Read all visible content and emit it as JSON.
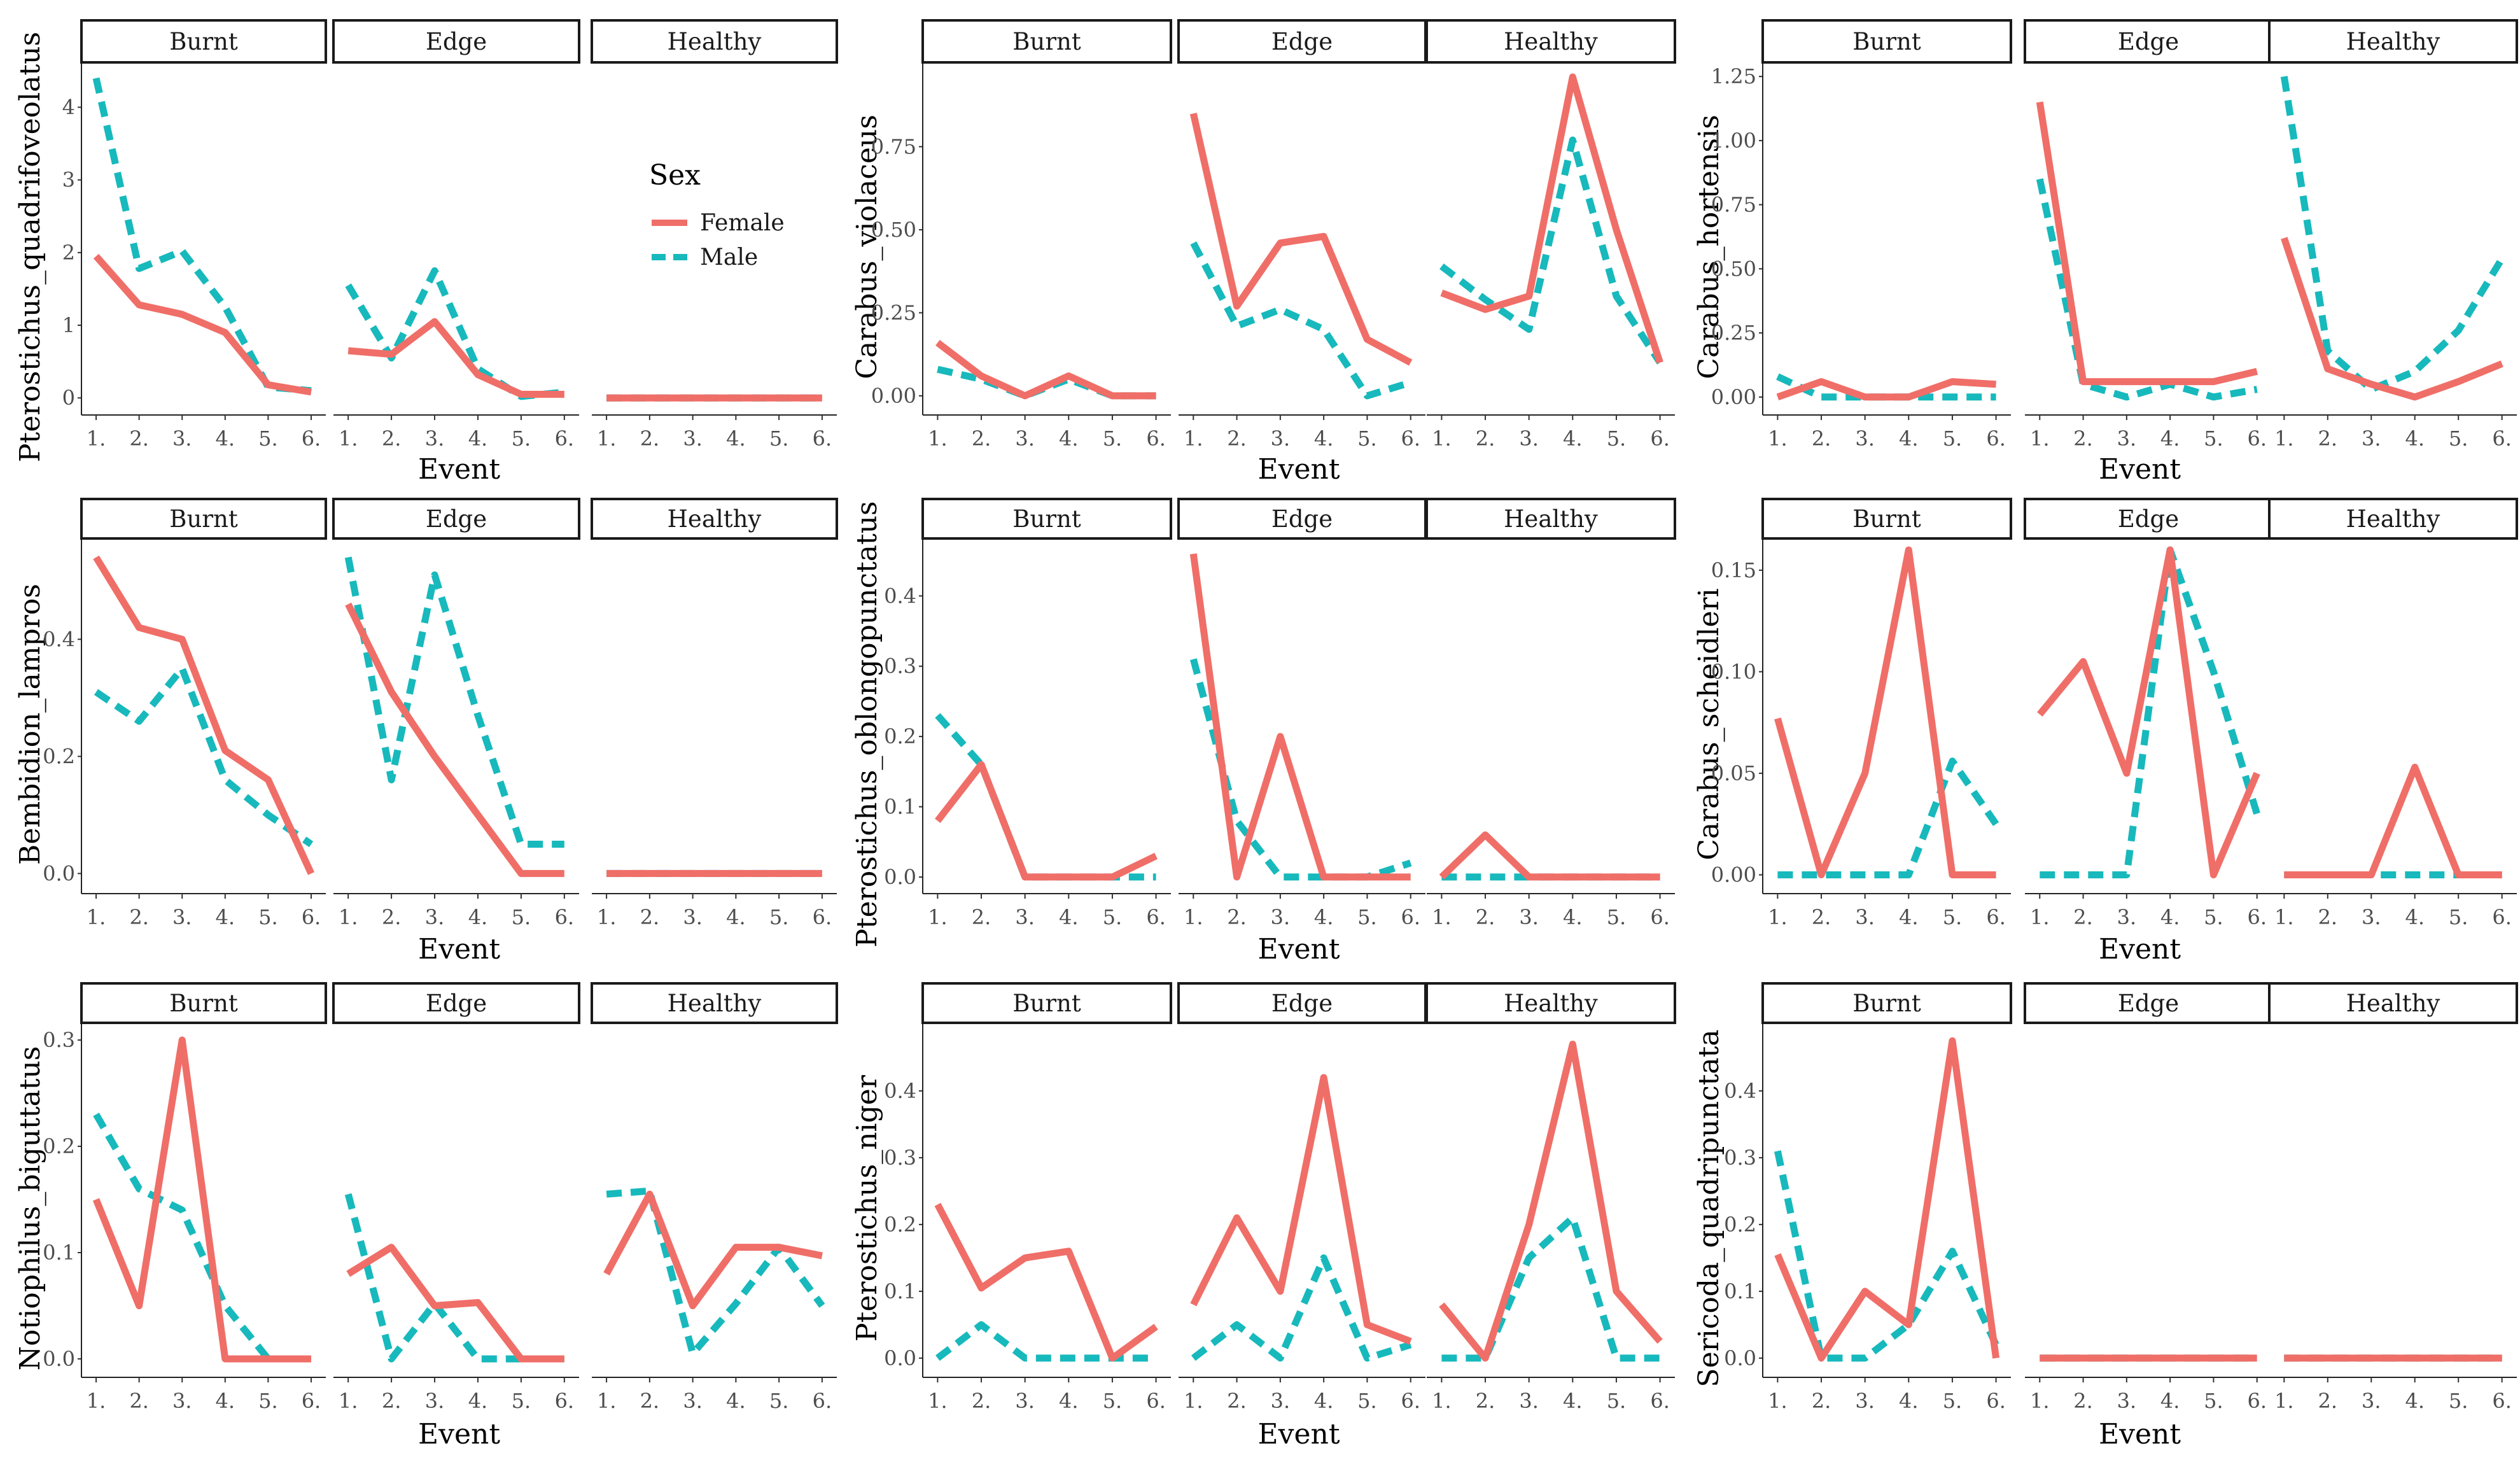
{
  "legend": {
    "title": "Sex",
    "entries": [
      {
        "label": "Female",
        "color": "#F06E68",
        "dash": "solid"
      },
      {
        "label": "Male",
        "color": "#17B9BC",
        "dash": "dashed"
      }
    ]
  },
  "chart_data": [
    {
      "type": "line",
      "species": "Pterostichus_quadrifoveolatus",
      "xlabel": "Event",
      "ylabel": "Pterostichus_quadrifoveolatus",
      "ylim": [
        -0.2,
        4.6
      ],
      "yticks": [
        0,
        1,
        2,
        3,
        4
      ],
      "ytick_labels": [
        "0",
        "1",
        "2",
        "3",
        "4"
      ],
      "categories": [
        "1.",
        "2.",
        "3.",
        "4.",
        "5.",
        "6."
      ],
      "panels": [
        {
          "facet": "Burnt",
          "series": [
            {
              "name": "Female",
              "values": [
                1.95,
                1.28,
                1.15,
                0.9,
                0.18,
                0.08
              ]
            },
            {
              "name": "Male",
              "values": [
                4.4,
                1.78,
                2.02,
                1.25,
                0.15,
                0.1
              ]
            }
          ]
        },
        {
          "facet": "Edge",
          "series": [
            {
              "name": "Female",
              "values": [
                0.65,
                0.6,
                1.05,
                0.32,
                0.05,
                0.05
              ]
            },
            {
              "name": "Male",
              "values": [
                1.55,
                0.55,
                1.75,
                0.4,
                0.02,
                0.08
              ]
            }
          ]
        },
        {
          "facet": "Healthy",
          "series": [
            {
              "name": "Female",
              "values": [
                0,
                0,
                0,
                0,
                0,
                0
              ]
            },
            {
              "name": "Male",
              "values": [
                0,
                0,
                0,
                0,
                0,
                0
              ]
            }
          ]
        }
      ]
    },
    {
      "type": "line",
      "species": "Carabus_violaceus",
      "xlabel": "Event",
      "ylabel": "Carabus_violaceus",
      "ylim": [
        -0.05,
        1.0
      ],
      "yticks": [
        0,
        0.25,
        0.5,
        0.75
      ],
      "ytick_labels": [
        "0.00",
        "0.25",
        "0.50",
        "0.75"
      ],
      "categories": [
        "1.",
        "2.",
        "3.",
        "4.",
        "5.",
        "6."
      ],
      "panels": [
        {
          "facet": "Burnt",
          "series": [
            {
              "name": "Female",
              "values": [
                0.16,
                0.06,
                0.0,
                0.06,
                0.0,
                0.0
              ]
            },
            {
              "name": "Male",
              "values": [
                0.08,
                0.05,
                0.0,
                0.05,
                0.0,
                0.0
              ]
            }
          ]
        },
        {
          "facet": "Edge",
          "series": [
            {
              "name": "Female",
              "values": [
                0.85,
                0.27,
                0.46,
                0.48,
                0.17,
                0.1
              ]
            },
            {
              "name": "Male",
              "values": [
                0.46,
                0.21,
                0.26,
                0.2,
                0.0,
                0.04
              ]
            }
          ]
        },
        {
          "facet": "Healthy",
          "series": [
            {
              "name": "Female",
              "values": [
                0.31,
                0.26,
                0.3,
                0.96,
                0.5,
                0.1
              ]
            },
            {
              "name": "Male",
              "values": [
                0.39,
                0.29,
                0.2,
                0.77,
                0.3,
                0.1
              ]
            }
          ]
        }
      ]
    },
    {
      "type": "line",
      "species": "Carabus_hortensis",
      "xlabel": "Event",
      "ylabel": "Carabus_hortensis",
      "ylim": [
        -0.06,
        1.3
      ],
      "yticks": [
        0,
        0.25,
        0.5,
        0.75,
        1.0,
        1.25
      ],
      "ytick_labels": [
        "0.00",
        "0.25",
        "0.50",
        "0.75",
        "1.00",
        "1.25"
      ],
      "categories": [
        "1.",
        "2.",
        "3.",
        "4.",
        "5.",
        "6."
      ],
      "panels": [
        {
          "facet": "Burnt",
          "series": [
            {
              "name": "Female",
              "values": [
                0.0,
                0.06,
                0.0,
                0.0,
                0.06,
                0.05
              ]
            },
            {
              "name": "Male",
              "values": [
                0.08,
                0.0,
                0.0,
                0.0,
                0.0,
                0.0
              ]
            }
          ]
        },
        {
          "facet": "Edge",
          "series": [
            {
              "name": "Female",
              "values": [
                1.15,
                0.06,
                0.06,
                0.06,
                0.06,
                0.1
              ]
            },
            {
              "name": "Male",
              "values": [
                0.85,
                0.05,
                0.0,
                0.05,
                0.0,
                0.03
              ]
            }
          ]
        },
        {
          "facet": "Healthy",
          "series": [
            {
              "name": "Female",
              "values": [
                0.62,
                0.11,
                0.05,
                0.0,
                0.06,
                0.13
              ]
            },
            {
              "name": "Male",
              "values": [
                1.25,
                0.18,
                0.03,
                0.1,
                0.26,
                0.54
              ]
            }
          ]
        }
      ]
    },
    {
      "type": "line",
      "species": "Bembidion_lampros",
      "xlabel": "Event",
      "ylabel": "Bembidion_lampros",
      "ylim": [
        -0.03,
        0.57
      ],
      "yticks": [
        0,
        0.2,
        0.4
      ],
      "ytick_labels": [
        "0.0",
        "0.2",
        "0.4"
      ],
      "categories": [
        "1.",
        "2.",
        "3.",
        "4.",
        "5.",
        "6."
      ],
      "panels": [
        {
          "facet": "Burnt",
          "series": [
            {
              "name": "Female",
              "values": [
                0.54,
                0.42,
                0.4,
                0.21,
                0.16,
                0.0
              ]
            },
            {
              "name": "Male",
              "values": [
                0.31,
                0.26,
                0.35,
                0.16,
                0.1,
                0.05
              ]
            }
          ]
        },
        {
          "facet": "Edge",
          "series": [
            {
              "name": "Female",
              "values": [
                0.46,
                0.31,
                0.2,
                0.1,
                0.0,
                0.0
              ]
            },
            {
              "name": "Male",
              "values": [
                0.54,
                0.16,
                0.51,
                0.27,
                0.05,
                0.05
              ]
            }
          ]
        },
        {
          "facet": "Healthy",
          "series": [
            {
              "name": "Female",
              "values": [
                0,
                0,
                0,
                0,
                0,
                0
              ]
            },
            {
              "name": "Male",
              "values": [
                0,
                0,
                0,
                0,
                0,
                0
              ]
            }
          ]
        }
      ]
    },
    {
      "type": "line",
      "species": "Pterostichus_oblongopunctatus",
      "xlabel": "Event",
      "ylabel": "Pterostichus_oblongopunctatus",
      "ylim": [
        -0.02,
        0.48
      ],
      "yticks": [
        0,
        0.1,
        0.2,
        0.3,
        0.4
      ],
      "ytick_labels": [
        "0.0",
        "0.1",
        "0.2",
        "0.3",
        "0.4"
      ],
      "categories": [
        "1.",
        "2.",
        "3.",
        "4.",
        "5.",
        "6."
      ],
      "panels": [
        {
          "facet": "Burnt",
          "series": [
            {
              "name": "Female",
              "values": [
                0.08,
                0.16,
                0.0,
                0.0,
                0.0,
                0.03
              ]
            },
            {
              "name": "Male",
              "values": [
                0.23,
                0.16,
                0.0,
                0.0,
                0.0,
                0.0
              ]
            }
          ]
        },
        {
          "facet": "Edge",
          "series": [
            {
              "name": "Female",
              "values": [
                0.46,
                0.0,
                0.2,
                0.0,
                0.0,
                0.0
              ]
            },
            {
              "name": "Male",
              "values": [
                0.31,
                0.08,
                0.0,
                0.0,
                0.0,
                0.02
              ]
            }
          ]
        },
        {
          "facet": "Healthy",
          "series": [
            {
              "name": "Female",
              "values": [
                0.0,
                0.06,
                0.0,
                0.0,
                0.0,
                0.0
              ]
            },
            {
              "name": "Male",
              "values": [
                0,
                0,
                0,
                0,
                0,
                0
              ]
            }
          ]
        }
      ]
    },
    {
      "type": "line",
      "species": "Carabus_scheidleri",
      "xlabel": "Event",
      "ylabel": "Carabus_scheidleri",
      "ylim": [
        -0.008,
        0.165
      ],
      "yticks": [
        0,
        0.05,
        0.1,
        0.15
      ],
      "ytick_labels": [
        "0.00",
        "0.05",
        "0.10",
        "0.15"
      ],
      "categories": [
        "1.",
        "2.",
        "3.",
        "4.",
        "5.",
        "6."
      ],
      "panels": [
        {
          "facet": "Burnt",
          "series": [
            {
              "name": "Female",
              "values": [
                0.077,
                0.0,
                0.05,
                0.16,
                0.0,
                0.0
              ]
            },
            {
              "name": "Male",
              "values": [
                0.0,
                0.0,
                0.0,
                0.0,
                0.056,
                0.025
              ]
            }
          ]
        },
        {
          "facet": "Edge",
          "series": [
            {
              "name": "Female",
              "values": [
                0.079,
                0.105,
                0.05,
                0.16,
                0.0,
                0.05
              ]
            },
            {
              "name": "Male",
              "values": [
                0.0,
                0.0,
                0.0,
                0.16,
                0.1,
                0.03
              ]
            }
          ]
        },
        {
          "facet": "Healthy",
          "series": [
            {
              "name": "Female",
              "values": [
                0.0,
                0.0,
                0.0,
                0.053,
                0.0,
                0.0
              ]
            },
            {
              "name": "Male",
              "values": [
                0,
                0,
                0,
                0,
                0,
                0
              ]
            }
          ]
        }
      ]
    },
    {
      "type": "line",
      "species": "Notiophilus_biguttatus",
      "xlabel": "Event",
      "ylabel": "Notiophilus_biguttatus",
      "ylim": [
        -0.015,
        0.315
      ],
      "yticks": [
        0,
        0.1,
        0.2,
        0.3
      ],
      "ytick_labels": [
        "0.0",
        "0.1",
        "0.2",
        "0.3"
      ],
      "categories": [
        "1.",
        "2.",
        "3.",
        "4.",
        "5.",
        "6."
      ],
      "panels": [
        {
          "facet": "Burnt",
          "series": [
            {
              "name": "Female",
              "values": [
                0.15,
                0.05,
                0.3,
                0.0,
                0.0,
                0.0
              ]
            },
            {
              "name": "Male",
              "values": [
                0.23,
                0.16,
                0.14,
                0.05,
                0.0,
                0.0
              ]
            }
          ]
        },
        {
          "facet": "Edge",
          "series": [
            {
              "name": "Female",
              "values": [
                0.08,
                0.105,
                0.05,
                0.053,
                0.0,
                0.0
              ]
            },
            {
              "name": "Male",
              "values": [
                0.155,
                0.0,
                0.052,
                0.0,
                0.0,
                0.0
              ]
            }
          ]
        },
        {
          "facet": "Healthy",
          "series": [
            {
              "name": "Female",
              "values": [
                0.08,
                0.155,
                0.05,
                0.105,
                0.105,
                0.097
              ]
            },
            {
              "name": "Male",
              "values": [
                0.155,
                0.158,
                0.005,
                0.052,
                0.105,
                0.05
              ]
            }
          ]
        }
      ]
    },
    {
      "type": "line",
      "species": "Pterostichus_niger",
      "xlabel": "Event",
      "ylabel": "Pterostichus_niger",
      "ylim": [
        -0.025,
        0.5
      ],
      "yticks": [
        0,
        0.1,
        0.2,
        0.3,
        0.4
      ],
      "ytick_labels": [
        "0.0",
        "0.1",
        "0.2",
        "0.3",
        "0.4"
      ],
      "categories": [
        "1.",
        "2.",
        "3.",
        "4.",
        "5.",
        "6."
      ],
      "panels": [
        {
          "facet": "Burnt",
          "series": [
            {
              "name": "Female",
              "values": [
                0.23,
                0.105,
                0.15,
                0.16,
                0.0,
                0.047
              ]
            },
            {
              "name": "Male",
              "values": [
                0.0,
                0.05,
                0.0,
                0.0,
                0.0,
                0.0
              ]
            }
          ]
        },
        {
          "facet": "Edge",
          "series": [
            {
              "name": "Female",
              "values": [
                0.08,
                0.21,
                0.1,
                0.42,
                0.05,
                0.025
              ]
            },
            {
              "name": "Male",
              "values": [
                0.0,
                0.05,
                0.0,
                0.15,
                0.0,
                0.02
              ]
            }
          ]
        },
        {
          "facet": "Healthy",
          "series": [
            {
              "name": "Female",
              "values": [
                0.08,
                0.0,
                0.2,
                0.47,
                0.1,
                0.025
              ]
            },
            {
              "name": "Male",
              "values": [
                0.0,
                0.0,
                0.15,
                0.21,
                0.0,
                0.0
              ]
            }
          ]
        }
      ]
    },
    {
      "type": "line",
      "species": "Sericoda_quadripunctata",
      "xlabel": "Event",
      "ylabel": "Sericoda_quadripunctata",
      "ylim": [
        -0.025,
        0.5
      ],
      "yticks": [
        0,
        0.1,
        0.2,
        0.3,
        0.4
      ],
      "ytick_labels": [
        "0.0",
        "0.1",
        "0.2",
        "0.3",
        "0.4"
      ],
      "categories": [
        "1.",
        "2.",
        "3.",
        "4.",
        "5.",
        "6."
      ],
      "panels": [
        {
          "facet": "Burnt",
          "series": [
            {
              "name": "Female",
              "values": [
                0.155,
                0.0,
                0.1,
                0.05,
                0.475,
                0.0
              ]
            },
            {
              "name": "Male",
              "values": [
                0.31,
                0.0,
                0.0,
                0.05,
                0.16,
                0.02
              ]
            }
          ]
        },
        {
          "facet": "Edge",
          "series": [
            {
              "name": "Female",
              "values": [
                0,
                0,
                0,
                0,
                0,
                0
              ]
            },
            {
              "name": "Male",
              "values": [
                0,
                0,
                0,
                0,
                0,
                0
              ]
            }
          ]
        },
        {
          "facet": "Healthy",
          "series": [
            {
              "name": "Female",
              "values": [
                0,
                0,
                0,
                0,
                0,
                0
              ]
            },
            {
              "name": "Male",
              "values": [
                0,
                0,
                0,
                0,
                0,
                0
              ]
            }
          ]
        }
      ]
    }
  ]
}
